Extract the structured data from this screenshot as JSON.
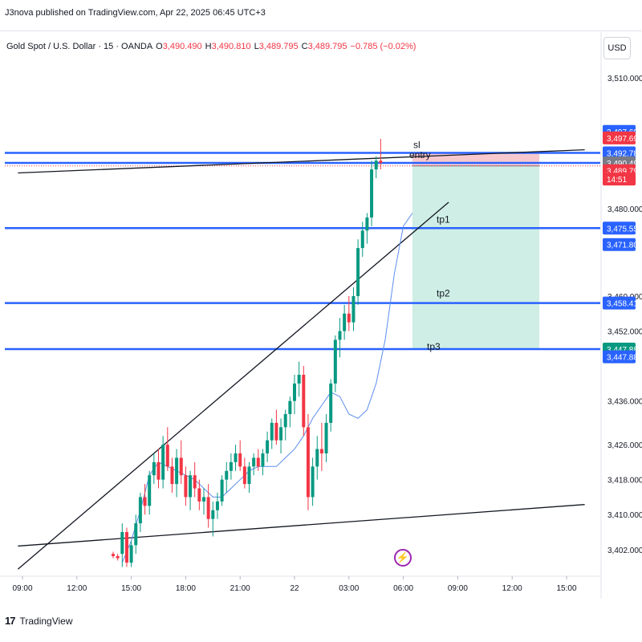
{
  "header": {
    "publisher": "J3nova published on TradingView.com, Apr 22, 2025 06:45 UTC+3"
  },
  "legend": {
    "symbol": "Gold Spot / U.S. Dollar · 15 · OANDA",
    "o_label": "O",
    "o_value": "3,490.490",
    "h_label": "H",
    "h_value": "3,490.810",
    "l_label": "L",
    "l_value": "3,489.795",
    "c_label": "C",
    "c_value": "3,489.795",
    "change": "−0.785 (−0.02%)"
  },
  "currency_button": "USD",
  "footer": {
    "logo": "17",
    "brand": "TradingView"
  },
  "colors": {
    "up": "#089981",
    "down": "#f23645",
    "level": "#2962ff",
    "ma": "#5b8def",
    "trend": "#131722",
    "stop_zone": "#f7c9cf",
    "target_zone": "#cfeee5"
  },
  "chart_data": {
    "type": "candlestick",
    "ylim": [
      3397,
      3514
    ],
    "ytick_labels": [
      {
        "value": 3510,
        "label": "3,510.000"
      },
      {
        "value": 3480,
        "label": "3,480.000"
      },
      {
        "value": 3460,
        "label": "3,460.000"
      },
      {
        "value": 3452,
        "label": "3,452.000"
      },
      {
        "value": 3436,
        "label": "3,436.000"
      },
      {
        "value": 3426,
        "label": "3,426.000"
      },
      {
        "value": 3418,
        "label": "3,418.000"
      },
      {
        "value": 3410,
        "label": "3,410.000"
      },
      {
        "value": 3402,
        "label": "3,402.000"
      }
    ],
    "xtick_labels": [
      "09:00",
      "12:00",
      "15:00",
      "18:00",
      "21:00",
      "22",
      "03:00",
      "06:00",
      "09:00",
      "12:00",
      "15:00"
    ],
    "xtick_bar_index": [
      0,
      12,
      24,
      36,
      48,
      60,
      72,
      84,
      96,
      108,
      120
    ],
    "price_tags": [
      {
        "label": "3,497.698",
        "value": 3497.698,
        "color": "#2962ff"
      },
      {
        "label": "3,497.698",
        "value": 3496.2,
        "color": "#f23645"
      },
      {
        "label": "3,492.785",
        "value": 3492.785,
        "color": "#2962ff"
      },
      {
        "label": "3,490.495",
        "value": 3490.495,
        "color": "#787b86"
      },
      {
        "label": "3,489.795",
        "value": 3488.7,
        "color": "#f23645"
      },
      {
        "label": "14:51",
        "value": 3486.8,
        "color": "#f23645"
      },
      {
        "label": "3,475.557",
        "value": 3475.557,
        "color": "#2962ff"
      },
      {
        "label": "3,471.802",
        "value": 3471.802,
        "color": "#2962ff"
      },
      {
        "label": "3,458.415",
        "value": 3458.415,
        "color": "#2962ff"
      },
      {
        "label": "3,447.880",
        "value": 3447.88,
        "color": "#089981"
      },
      {
        "label": "3,447.880",
        "value": 3446.1,
        "color": "#2962ff"
      }
    ],
    "levels": [
      {
        "name": "sl",
        "value": 3492.785
      },
      {
        "name": "entry",
        "value": 3490.495
      },
      {
        "name": "tp1",
        "value": 3475.557
      },
      {
        "name": "tp2",
        "value": 3458.415
      },
      {
        "name": "tp3",
        "value": 3447.88
      }
    ],
    "last_price": 3489.795,
    "position": {
      "entry": 3489.795,
      "stop": 3492.785,
      "target": 3447.88,
      "start_bar": 86,
      "end_bar": 114
    },
    "trendlines": [
      {
        "from": [
          -1,
          3488.2
        ],
        "to": [
          124,
          3493.5
        ]
      },
      {
        "from": [
          -1,
          3397.5
        ],
        "to": [
          94,
          3481.5
        ]
      },
      {
        "from": [
          -1,
          3402.8
        ],
        "to": [
          124,
          3412.3
        ]
      }
    ],
    "candles": [
      [
        3401,
        3401.5,
        3400,
        3400.5
      ],
      [
        3400.5,
        3401,
        3399.5,
        3400
      ],
      [
        3401,
        3408,
        3398,
        3406
      ],
      [
        3406,
        3407,
        3398,
        3399
      ],
      [
        3399,
        3404,
        3398,
        3403
      ],
      [
        3403,
        3410,
        3401,
        3408
      ],
      [
        3408,
        3415,
        3406,
        3414
      ],
      [
        3414,
        3417,
        3410,
        3412
      ],
      [
        3412,
        3420,
        3410,
        3419
      ],
      [
        3419,
        3424,
        3417,
        3422
      ],
      [
        3422,
        3425,
        3416,
        3418
      ],
      [
        3418,
        3428,
        3416,
        3426
      ],
      [
        3426,
        3430,
        3420,
        3421
      ],
      [
        3421,
        3423,
        3415,
        3417
      ],
      [
        3417,
        3425,
        3414,
        3423
      ],
      [
        3423,
        3427,
        3417,
        3419
      ],
      [
        3419,
        3421,
        3412,
        3414
      ],
      [
        3414,
        3420,
        3411,
        3419
      ],
      [
        3419,
        3422,
        3414,
        3416
      ],
      [
        3416,
        3418,
        3411,
        3413
      ],
      [
        3413,
        3416,
        3410,
        3414
      ],
      [
        3414,
        3417,
        3407,
        3409
      ],
      [
        3409,
        3413,
        3405,
        3411
      ],
      [
        3411,
        3415,
        3409,
        3413
      ],
      [
        3413,
        3419,
        3412,
        3418
      ],
      [
        3418,
        3422,
        3415,
        3420
      ],
      [
        3420,
        3424,
        3418,
        3422
      ],
      [
        3422,
        3426,
        3420,
        3424
      ],
      [
        3424,
        3427,
        3420,
        3421
      ],
      [
        3421,
        3423,
        3416,
        3417
      ],
      [
        3417,
        3422,
        3415,
        3421
      ],
      [
        3421,
        3424,
        3419,
        3423
      ],
      [
        3423,
        3425,
        3420,
        3421
      ],
      [
        3421,
        3425,
        3419,
        3424
      ],
      [
        3424,
        3429,
        3422,
        3427
      ],
      [
        3427,
        3432,
        3425,
        3431
      ],
      [
        3431,
        3434,
        3426,
        3427
      ],
      [
        3427,
        3432,
        3424,
        3430
      ],
      [
        3430,
        3434,
        3427,
        3433
      ],
      [
        3433,
        3437,
        3430,
        3436
      ],
      [
        3436,
        3442,
        3433,
        3440
      ],
      [
        3440,
        3445,
        3437,
        3442
      ],
      [
        3442,
        3444,
        3428,
        3430
      ],
      [
        3430,
        3433,
        3411,
        3414
      ],
      [
        3414,
        3423,
        3412,
        3421
      ],
      [
        3421,
        3428,
        3418,
        3425
      ],
      [
        3425,
        3431,
        3420,
        3424
      ],
      [
        3424,
        3433,
        3422,
        3431
      ],
      [
        3431,
        3441,
        3429,
        3440
      ],
      [
        3440,
        3451,
        3438,
        3450
      ],
      [
        3450,
        3455,
        3446,
        3452
      ],
      [
        3452,
        3458,
        3450,
        3456
      ],
      [
        3456,
        3460,
        3452,
        3454
      ],
      [
        3454,
        3462,
        3452,
        3460
      ],
      [
        3460,
        3473,
        3458,
        3471
      ],
      [
        3471,
        3477,
        3469,
        3475
      ],
      [
        3475,
        3479,
        3472,
        3478
      ],
      [
        3478,
        3491,
        3476,
        3489
      ],
      [
        3489,
        3492,
        3487,
        3491
      ],
      [
        3491,
        3496,
        3489,
        3490.5
      ]
    ],
    "candle_start_bar": 20,
    "ma": [
      [
        22,
        3399
      ],
      [
        24,
        3404
      ],
      [
        26,
        3411
      ],
      [
        28,
        3419
      ],
      [
        30,
        3422
      ],
      [
        32,
        3421
      ],
      [
        34,
        3420
      ],
      [
        36,
        3419
      ],
      [
        38,
        3418
      ],
      [
        40,
        3416
      ],
      [
        42,
        3414
      ],
      [
        44,
        3414
      ],
      [
        46,
        3416
      ],
      [
        48,
        3418
      ],
      [
        50,
        3420
      ],
      [
        52,
        3421
      ],
      [
        54,
        3421
      ],
      [
        56,
        3421
      ],
      [
        58,
        3423
      ],
      [
        60,
        3425
      ],
      [
        62,
        3428
      ],
      [
        64,
        3432
      ],
      [
        66,
        3435
      ],
      [
        68,
        3438
      ],
      [
        70,
        3437
      ],
      [
        72,
        3433
      ],
      [
        74,
        3432
      ],
      [
        76,
        3434
      ],
      [
        78,
        3440
      ],
      [
        80,
        3450
      ],
      [
        82,
        3465
      ],
      [
        84,
        3476
      ],
      [
        86,
        3479
      ]
    ]
  }
}
